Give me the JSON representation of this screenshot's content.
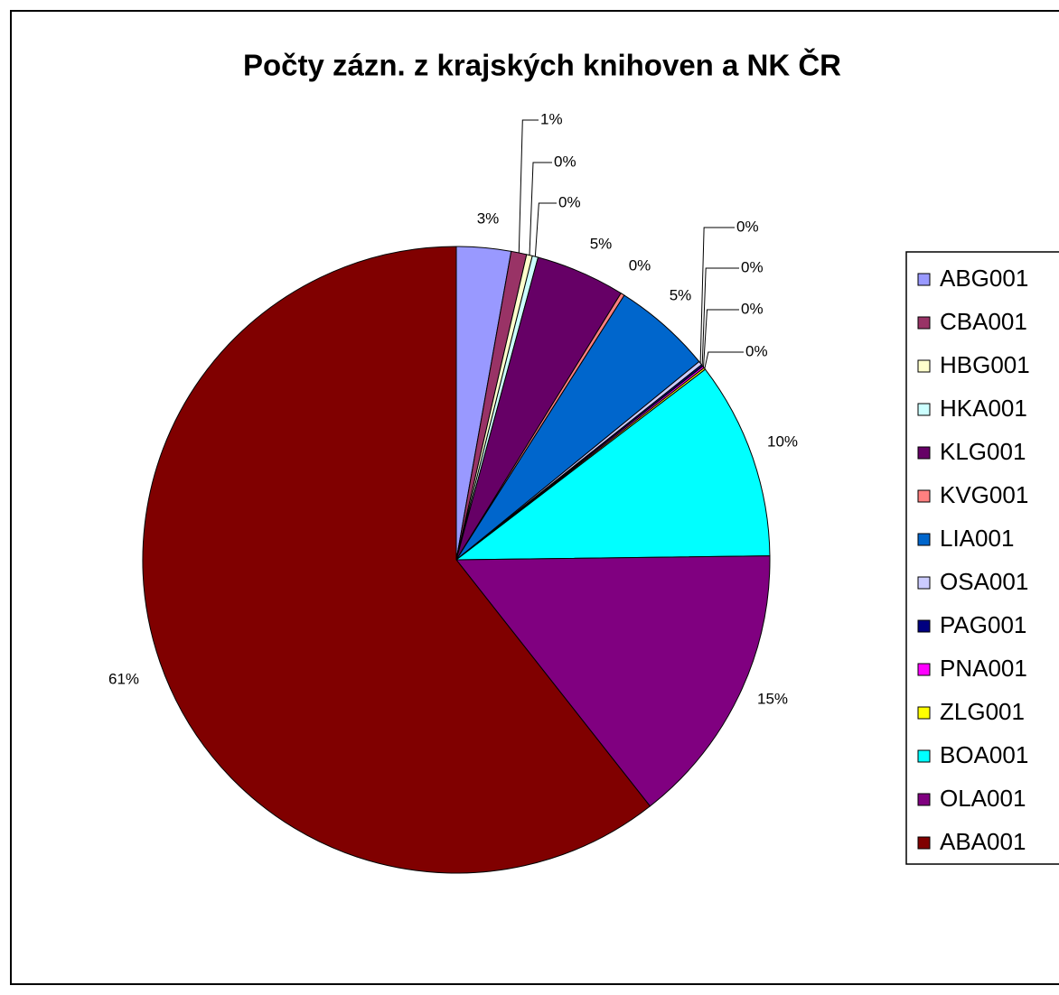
{
  "chart_data": {
    "type": "pie",
    "title": "Počty zázn. z krajských knihoven a NK ČR",
    "categories": [
      "ABG001",
      "CBA001",
      "HBG001",
      "HKA001",
      "KLG001",
      "KVG001",
      "LIA001",
      "OSA001",
      "PAG001",
      "PNA001",
      "ZLG001",
      "BOA001",
      "OLA001",
      "ABA001"
    ],
    "values": [
      2.8,
      0.8,
      0.3,
      0.3,
      4.6,
      0.2,
      5.1,
      0.2,
      0.1,
      0.1,
      0.1,
      10.2,
      14.6,
      60.6
    ],
    "value_labels": [
      "3%",
      "1%",
      "0%",
      "0%",
      "5%",
      "0%",
      "5%",
      "0%",
      "0%",
      "0%",
      "0%",
      "10%",
      "15%",
      "61%"
    ],
    "colors": [
      "#9999ff",
      "#993366",
      "#ffffcc",
      "#ccffff",
      "#660066",
      "#ff8080",
      "#0066cc",
      "#ccccff",
      "#000080",
      "#ff00ff",
      "#ffff00",
      "#00ffff",
      "#800080",
      "#800000"
    ],
    "legend": "right"
  }
}
